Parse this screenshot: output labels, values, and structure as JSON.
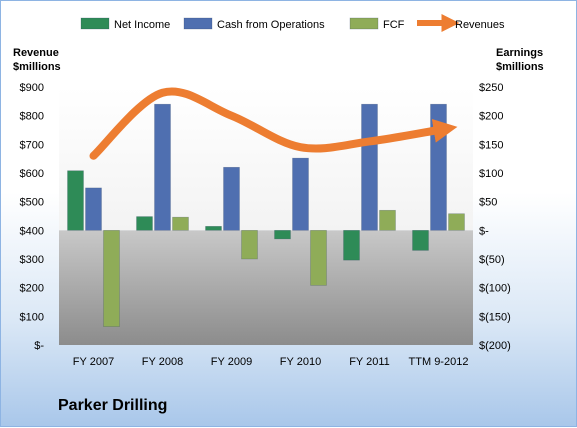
{
  "company": "Parker Drilling",
  "chart_data": {
    "type": "bar",
    "categories": [
      "FY 2007",
      "FY 2008",
      "FY 2009",
      "FY 2010",
      "FY 2011",
      "TTM 9-2012"
    ],
    "series": [
      {
        "name": "Net Income",
        "axis": "right",
        "color": "#2e8b57",
        "values": [
          104,
          24,
          7,
          -15,
          -52,
          -35
        ]
      },
      {
        "name": "Cash from Operations",
        "axis": "right",
        "color": "#4f6fb0",
        "values": [
          74,
          220,
          110,
          126,
          220,
          220
        ]
      },
      {
        "name": "FCF",
        "axis": "right",
        "color": "#8fac58",
        "values": [
          -168,
          23,
          -50,
          -96,
          35,
          29
        ]
      },
      {
        "name": "Revenues",
        "axis": "left",
        "type": "line",
        "color": "#ed7d31",
        "values": [
          660,
          880,
          800,
          690,
          710,
          750
        ]
      }
    ],
    "left_axis": {
      "label_line1": "Revenue",
      "label_line2": "$millions",
      "min": 0,
      "max": 900,
      "step": 100,
      "ticks": [
        "$-",
        "$100",
        "$200",
        "$300",
        "$400",
        "$500",
        "$600",
        "$700",
        "$800",
        "$900"
      ]
    },
    "right_axis": {
      "label_line1": "Earnings",
      "label_line2": "$millions",
      "min": -200,
      "max": 250,
      "step": 50,
      "ticks": [
        "$(200)",
        "$(150)",
        "$(100)",
        "$(50)",
        "$-",
        "$50",
        "$100",
        "$150",
        "$200",
        "$250"
      ]
    },
    "legend_position": "top",
    "grid": false
  }
}
